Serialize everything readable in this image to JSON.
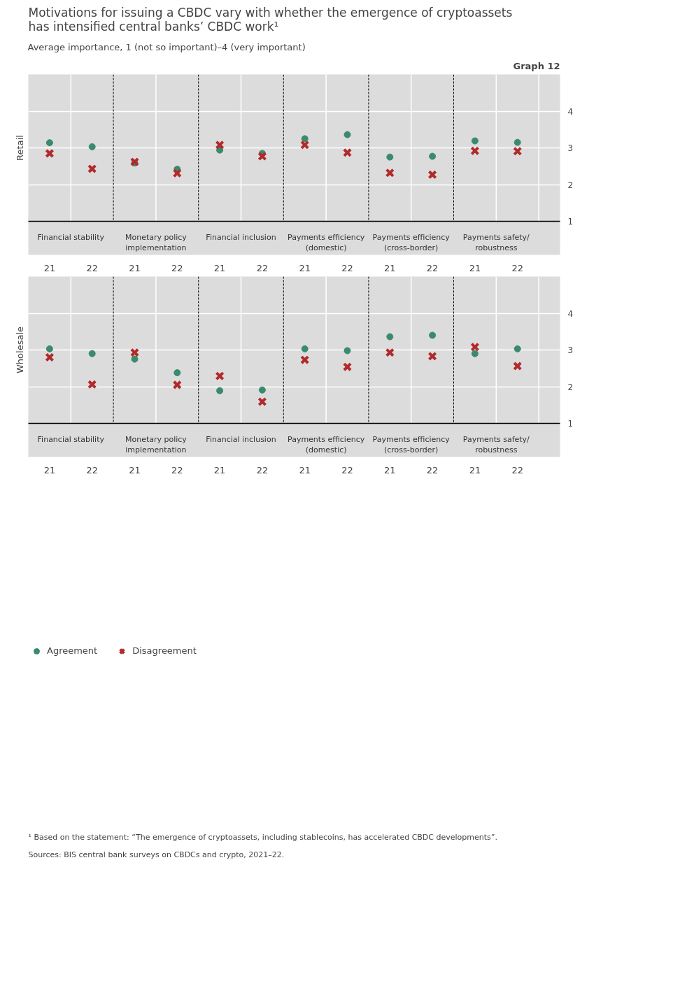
{
  "chart_data": [
    {
      "type": "scatter",
      "title": "Motivations for issuing a CBDC vary with whether the emergence of cryptoassets\nhas intensified central banks’ CBDC work¹",
      "subtitle": "Average importance, 1 (not so important)–4 (very important)",
      "ylabel": "Retail",
      "categories": [
        "21",
        "22",
        "21",
        "22",
        "21",
        "22",
        "21",
        "22",
        "21",
        "22",
        "21",
        "22"
      ],
      "annotations": [
        "Graph 12",
        "Financial stability",
        "Monetary policy\nimplementation",
        "Financial inclusion",
        "Payments efficiency\n(domestic)",
        "Payments efficiency\n(cross-border)",
        "Payments safety/\nrobustness"
      ],
      "ylim": [
        1,
        5
      ],
      "yticks": [
        1,
        2,
        3,
        4
      ],
      "grid": "y",
      "legend": false,
      "series": [
        {
          "color": "#3a8a6e",
          "marker": "circle",
          "values": [
            3.14,
            3.03,
            2.59,
            2.42,
            2.94,
            2.85,
            3.25,
            3.36,
            2.75,
            2.77,
            3.19,
            3.15
          ]
        },
        {
          "color": "#b22a2a",
          "marker": "cross",
          "values": [
            2.85,
            2.43,
            2.62,
            2.31,
            3.08,
            2.77,
            3.08,
            2.87,
            2.32,
            2.27,
            2.92,
            2.91
          ]
        }
      ]
    },
    {
      "type": "scatter",
      "ylabel": "Wholesale",
      "categories": [
        "21",
        "22",
        "21",
        "22",
        "21",
        "22",
        "21",
        "22",
        "21",
        "22",
        "21",
        "22"
      ],
      "annotations": [
        "Financial stability",
        "Monetary policy\nimplementation",
        "Financial inclusion",
        "Payments efficiency\n(domestic)",
        "Payments efficiency\n(cross-border)",
        "Payments safety/\nrobustness",
        "¹  Based on the statement: “The emergence of cryptoassets, including stablecoins, has accelerated CBDC developments”.",
        "Sources: BIS central bank surveys on CBDCs and crypto, 2021–22."
      ],
      "ylim": [
        1,
        5
      ],
      "yticks": [
        1,
        2,
        3,
        4
      ],
      "grid": "y",
      "legend": "bottom",
      "series": [
        {
          "name": "Agreement",
          "color": "#3a8a6e",
          "marker": "circle",
          "values": [
            3.03,
            2.9,
            2.75,
            2.38,
            1.89,
            1.91,
            3.03,
            2.98,
            3.36,
            3.4,
            2.9,
            3.03
          ]
        },
        {
          "name": "Disagreement",
          "color": "#b22a2a",
          "marker": "cross",
          "values": [
            2.8,
            2.06,
            2.93,
            2.05,
            2.29,
            1.59,
            2.73,
            2.54,
            2.93,
            2.83,
            3.08,
            2.56
          ]
        }
      ]
    }
  ]
}
